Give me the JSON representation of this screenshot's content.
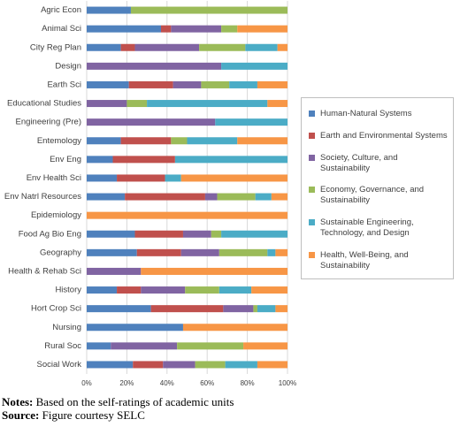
{
  "chart_data": {
    "type": "stacked-barh",
    "categories": [
      "Agric Econ",
      "Animal Sci",
      "City Reg Plan",
      "Design",
      "Earth Sci",
      "Educational Studies",
      "Engineering (Pre)",
      "Entemology",
      "Env Eng",
      "Env Health Sci",
      "Env Natrl Resources",
      "Epidemiology",
      "Food Ag Bio Eng",
      "Geography",
      "Health & Rehab Sci",
      "History",
      "Hort Crop Sci",
      "Nursing",
      "Rural Soc",
      "Social Work"
    ],
    "series": [
      {
        "name": "Human-Natural Systems",
        "color": "#4f81bd",
        "values": [
          22,
          37,
          17,
          0,
          21,
          0,
          0,
          17,
          13,
          15,
          19,
          0,
          24,
          25,
          0,
          15,
          32,
          48,
          12,
          23
        ]
      },
      {
        "name": "Earth and Environmental Systems",
        "color": "#c0504d",
        "values": [
          0,
          5,
          7,
          0,
          22,
          0,
          0,
          25,
          31,
          24,
          40,
          0,
          24,
          22,
          0,
          12,
          36,
          0,
          0,
          15
        ]
      },
      {
        "name": "Society, Culture, and Sustainability",
        "color": "#8064a2",
        "values": [
          0,
          25,
          32,
          67,
          14,
          20,
          64,
          0,
          0,
          0,
          6,
          0,
          14,
          19,
          27,
          22,
          15,
          0,
          33,
          16
        ]
      },
      {
        "name": "Economy, Governance, and Sustainability",
        "color": "#9bbb59",
        "values": [
          78,
          8,
          23,
          0,
          14,
          10,
          0,
          8,
          0,
          0,
          19,
          0,
          5,
          24,
          0,
          17,
          2,
          0,
          33,
          15
        ]
      },
      {
        "name": "Sustainable Engineering, Technology, and Design",
        "color": "#4bacc6",
        "values": [
          0,
          0,
          16,
          33,
          14,
          60,
          36,
          25,
          56,
          8,
          8,
          0,
          33,
          4,
          0,
          16,
          9,
          0,
          0,
          16
        ]
      },
      {
        "name": "Health, Well-Being, and Sustainability",
        "color": "#f79646",
        "values": [
          0,
          25,
          5,
          0,
          15,
          10,
          0,
          25,
          0,
          53,
          8,
          100,
          0,
          6,
          73,
          18,
          6,
          52,
          22,
          15
        ]
      }
    ],
    "xlim": [
      0,
      100
    ],
    "xticks": [
      {
        "value": 0,
        "label": "0%"
      },
      {
        "value": 20,
        "label": "20%"
      },
      {
        "value": 40,
        "label": "40%"
      },
      {
        "value": 60,
        "label": "60%"
      },
      {
        "value": 80,
        "label": "80%"
      },
      {
        "value": 100,
        "label": "100%"
      }
    ],
    "grid": true,
    "legend": "right"
  },
  "notes": {
    "label": "Notes:",
    "text": "Based on the self-ratings of academic units"
  },
  "source": {
    "label": "Source:",
    "text": "Figure courtesy SELC"
  }
}
